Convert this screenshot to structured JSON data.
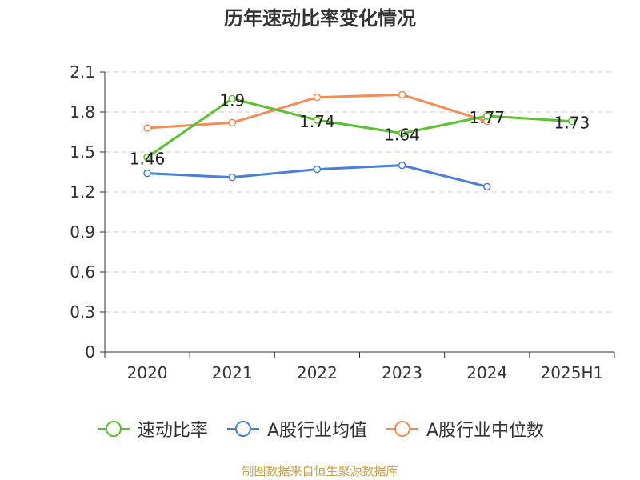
{
  "chart_data": {
    "type": "line",
    "title": "历年速动比率变化情况",
    "categories": [
      "2020",
      "2021",
      "2022",
      "2023",
      "2024",
      "2025H1"
    ],
    "y_ticks": [
      "0",
      "0.3",
      "0.6",
      "0.9",
      "1.2",
      "1.5",
      "1.8",
      "2.1"
    ],
    "ylim": [
      0,
      2.1
    ],
    "grid": true,
    "legend_position": "bottom",
    "series": [
      {
        "name": "速动比率",
        "color": "#5ac12f",
        "values": [
          1.46,
          1.9,
          1.74,
          1.64,
          1.77,
          1.73
        ],
        "labels": [
          "1.46",
          "1.9",
          "1.74",
          "1.64",
          "1.77",
          "1.73"
        ]
      },
      {
        "name": "A股行业均值",
        "color": "#4a7fd9",
        "values": [
          1.34,
          1.31,
          1.37,
          1.4,
          1.24,
          null
        ]
      },
      {
        "name": "A股行业中位数",
        "color": "#f68c55",
        "values": [
          1.68,
          1.72,
          1.91,
          1.93,
          1.73,
          null
        ]
      }
    ]
  },
  "footer": {
    "source": "制图数据来自恒生聚源数据库"
  }
}
